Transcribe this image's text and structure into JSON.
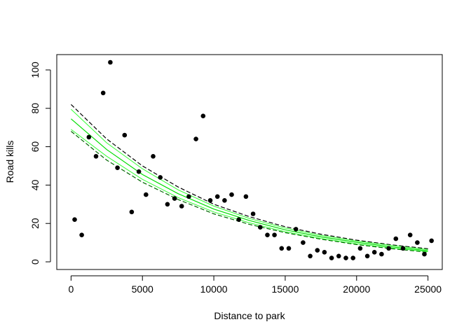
{
  "chart_data": {
    "type": "scatter",
    "title": "",
    "xlabel": "Distance to park",
    "ylabel": "Road kills",
    "xlim": [
      -1000,
      26000
    ],
    "ylim": [
      -4,
      108
    ],
    "x_ticks": [
      0,
      5000,
      10000,
      15000,
      20000,
      25000
    ],
    "x_tick_labels": [
      "0",
      "5000",
      "10000",
      "15000",
      "20000",
      "25000"
    ],
    "y_ticks": [
      0,
      20,
      40,
      60,
      80,
      100
    ],
    "y_tick_labels": [
      "0",
      "20",
      "40",
      "60",
      "80",
      "100"
    ],
    "grid": false,
    "legend": "none",
    "colors": {
      "points": "#000000",
      "fit": "#00dd00",
      "fit_band": "#33ff33",
      "quasi_band": "#000000",
      "quasi_band_alt": "#006600"
    },
    "points": {
      "x": [
        250,
        750,
        1250,
        1750,
        2250,
        2750,
        3250,
        3750,
        4250,
        4750,
        5250,
        5750,
        6250,
        6750,
        7250,
        7750,
        8250,
        8750,
        9250,
        9750,
        10250,
        10750,
        11250,
        11750,
        12250,
        12750,
        13250,
        13750,
        14250,
        14750,
        15250,
        15750,
        16250,
        16750,
        17250,
        17750,
        18250,
        18750,
        19250,
        19750,
        20250,
        20750,
        21250,
        21750,
        22250,
        22750,
        23250,
        23750,
        24250,
        24750,
        25250
      ],
      "y": [
        22,
        14,
        65,
        55,
        88,
        104,
        49,
        66,
        26,
        47,
        35,
        55,
        44,
        30,
        33,
        29,
        34,
        64,
        76,
        32,
        34,
        32,
        35,
        22,
        34,
        25,
        18,
        14,
        14,
        7,
        7,
        17,
        10,
        3,
        6,
        5,
        2,
        3,
        2,
        2,
        7,
        3,
        5,
        4,
        7,
        12,
        7,
        14,
        10,
        4,
        11
      ]
    },
    "curves": {
      "x": [
        0,
        2500,
        5000,
        7500,
        10000,
        12500,
        15000,
        17500,
        20000,
        22500,
        25000
      ],
      "fit": [
        74.5,
        58.5,
        45.5,
        35.5,
        27.5,
        21.5,
        16.7,
        13.0,
        10.2,
        7.8,
        5.8
      ],
      "fit_lower": [
        69,
        55,
        43,
        33.5,
        26,
        20.3,
        15.7,
        12.2,
        9.4,
        7.2,
        5.3
      ],
      "fit_upper": [
        79.5,
        62,
        48.5,
        37.5,
        29,
        22.6,
        17.6,
        13.8,
        10.9,
        8.5,
        6.4
      ],
      "quasi_lower": [
        68,
        53,
        41.5,
        32.5,
        25,
        19.5,
        15.2,
        11.8,
        9.0,
        6.8,
        5.0
      ],
      "quasi_upper": [
        82,
        64,
        50,
        39,
        30,
        23.5,
        18.3,
        14.4,
        11.3,
        8.8,
        6.8
      ]
    }
  }
}
